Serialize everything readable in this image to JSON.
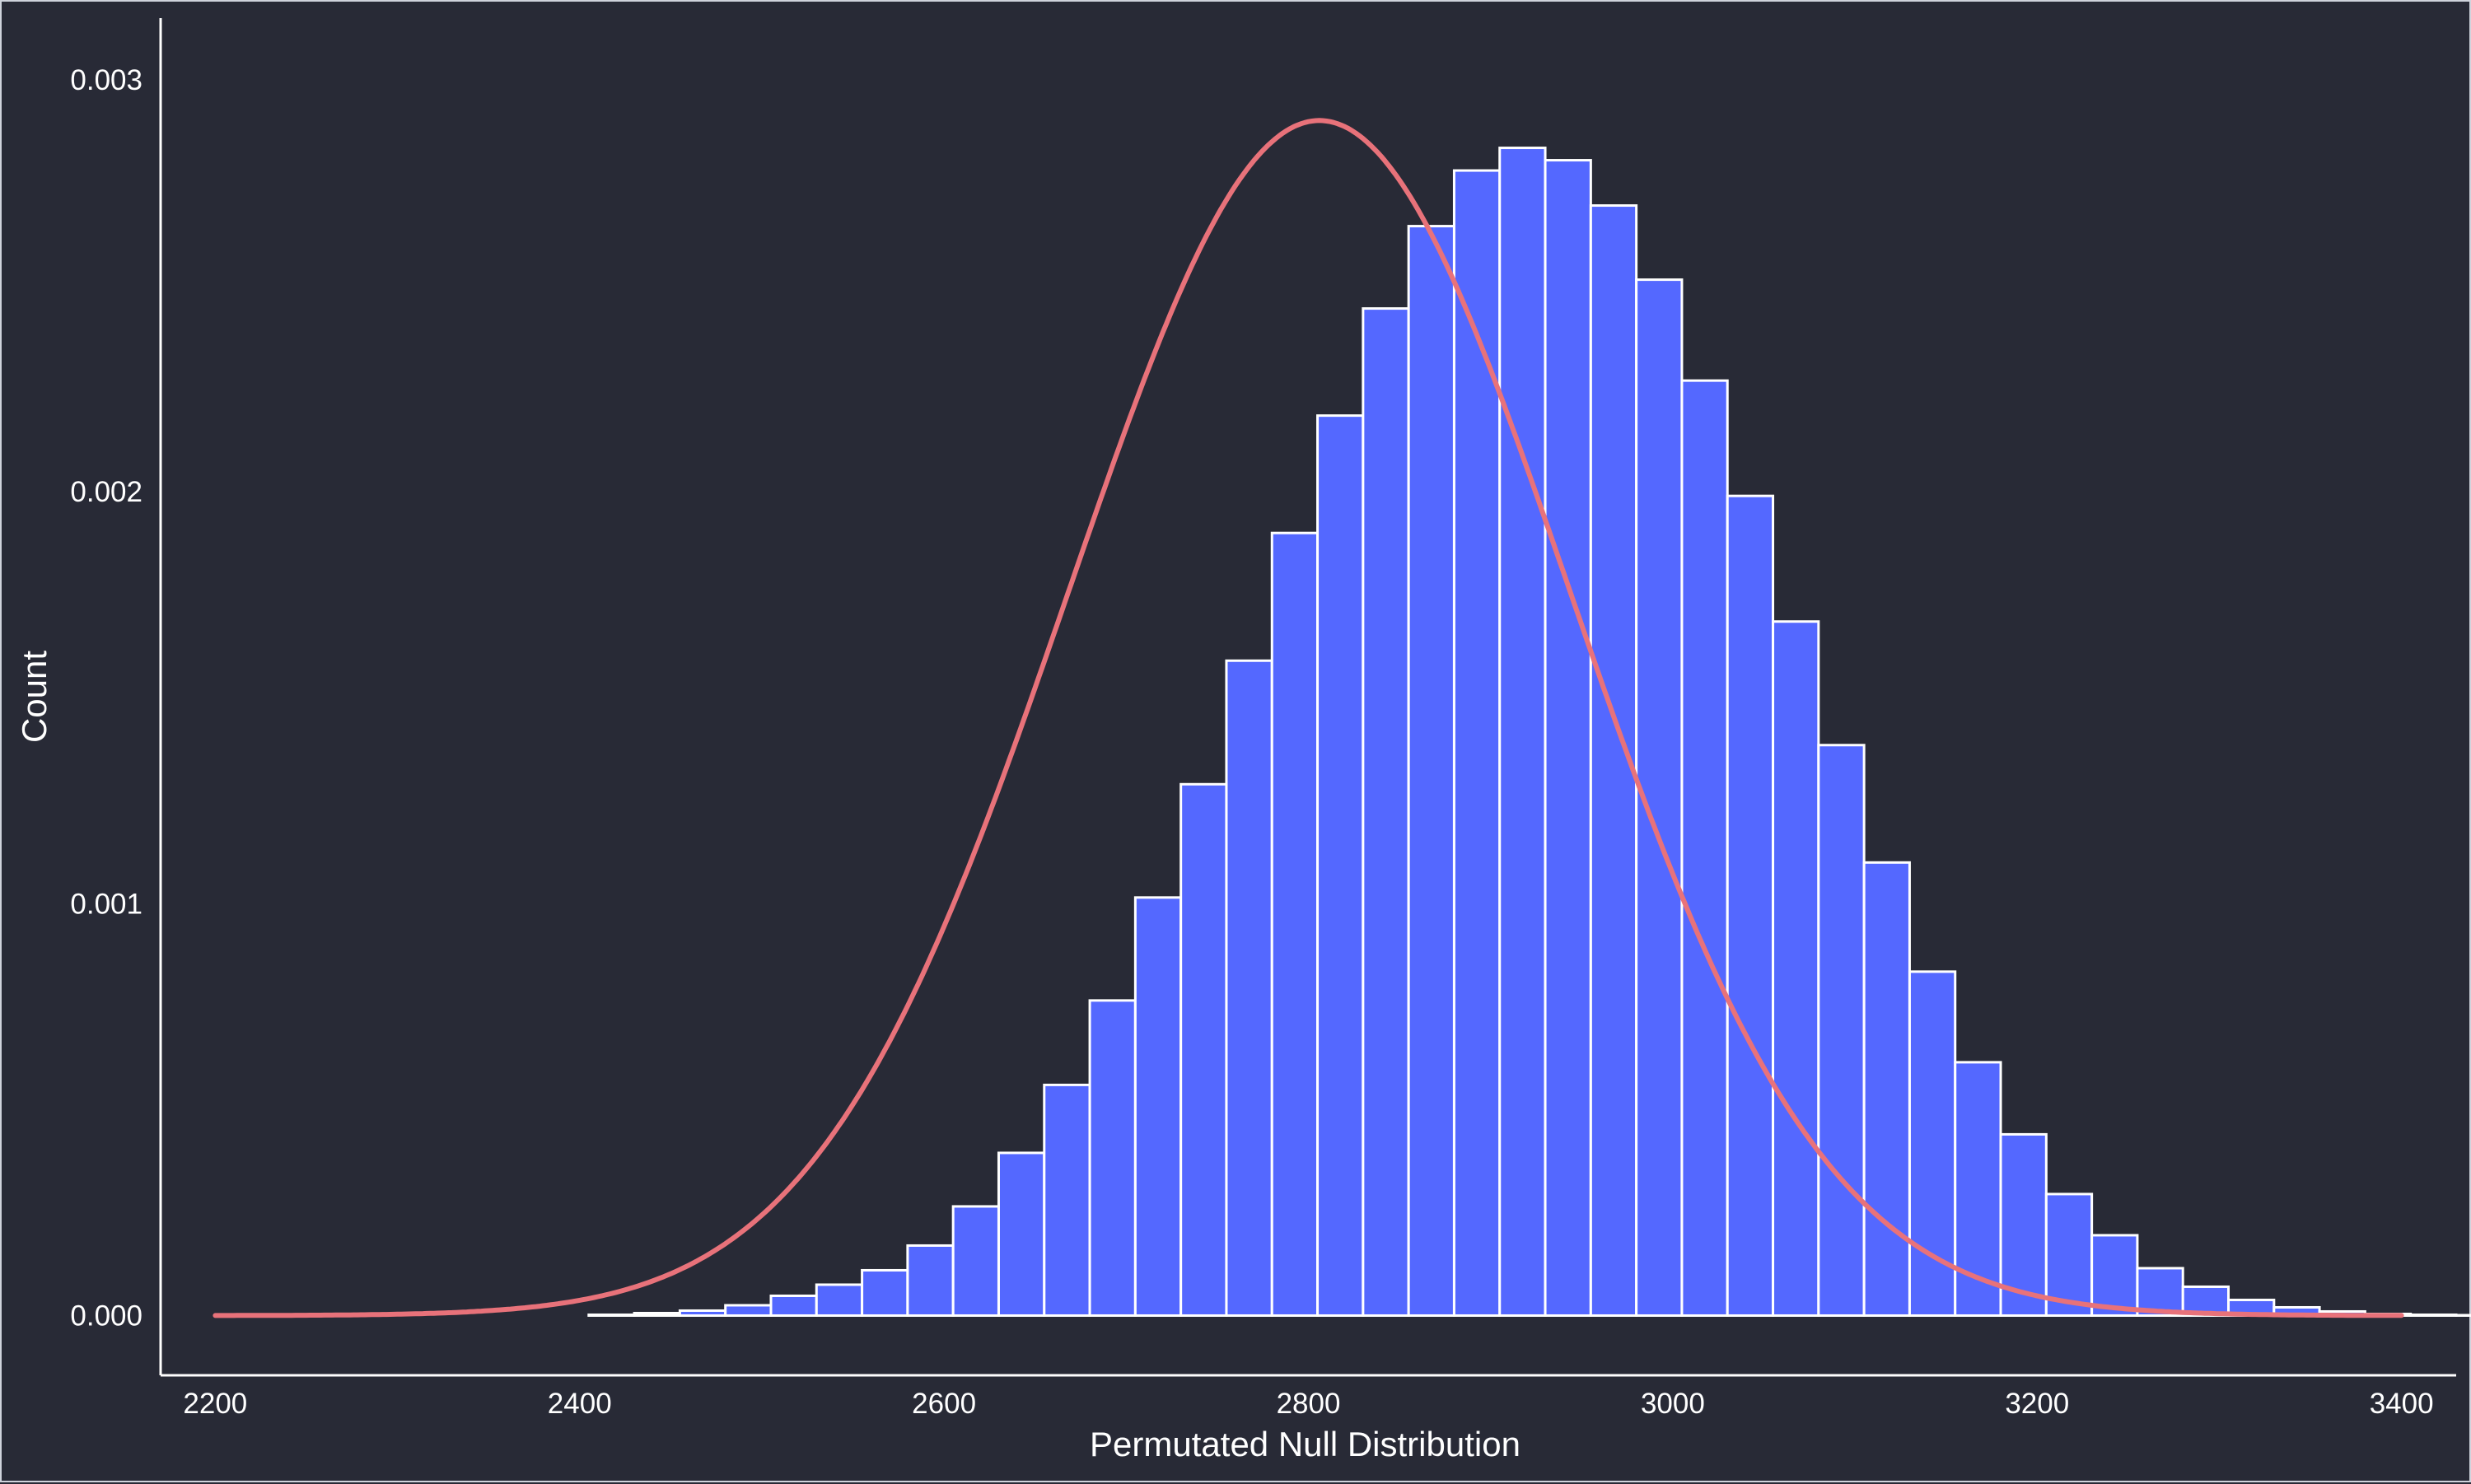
{
  "chart_data": {
    "type": "bar",
    "title": "",
    "xlabel": "Permutated Null Distribution",
    "ylabel": "Count",
    "xlim": [
      2170,
      3430
    ],
    "ylim": [
      -0.000145,
      0.00315
    ],
    "x_ticks": [
      2200,
      2400,
      2600,
      2800,
      3000,
      3200,
      3400
    ],
    "x_tick_labels": [
      "2200",
      "2400",
      "2600",
      "2800",
      "3000",
      "3200",
      "3400"
    ],
    "y_ticks": [
      0,
      0.001,
      0.002,
      0.003
    ],
    "y_tick_labels": [
      "0.000",
      "0.001",
      "0.002",
      "0.003"
    ],
    "grid": false,
    "bar_fill": "#5468ff",
    "bar_edge": "#ffffff",
    "curve_color": "#e8727a",
    "background": "#282a36",
    "bins": {
      "start": 2205,
      "width": 25,
      "values": [
        0,
        0,
        0,
        0,
        0,
        0,
        0,
        0,
        2e-06,
        6e-06,
        1.2e-05,
        2.5e-05,
        4.8e-05,
        7.5e-05,
        0.00011,
        0.00017,
        0.000265,
        0.000395,
        0.00056,
        0.000765,
        0.001015,
        0.00129,
        0.00159,
        0.0019,
        0.002185,
        0.002445,
        0.002645,
        0.00278,
        0.002835,
        0.002805,
        0.002695,
        0.002515,
        0.00227,
        0.00199,
        0.001685,
        0.001385,
        0.0011,
        0.000835,
        0.000615,
        0.00044,
        0.000295,
        0.000195,
        0.000115,
        7e-05,
        3.8e-05,
        2e-05,
        1e-05,
        4e-06,
        2e-06,
        1e-06,
        0,
        0,
        0
      ]
    },
    "density_curve": {
      "type": "normal",
      "mean": 2806,
      "sd": 137.5,
      "x_range": [
        2200,
        3400
      ]
    }
  }
}
